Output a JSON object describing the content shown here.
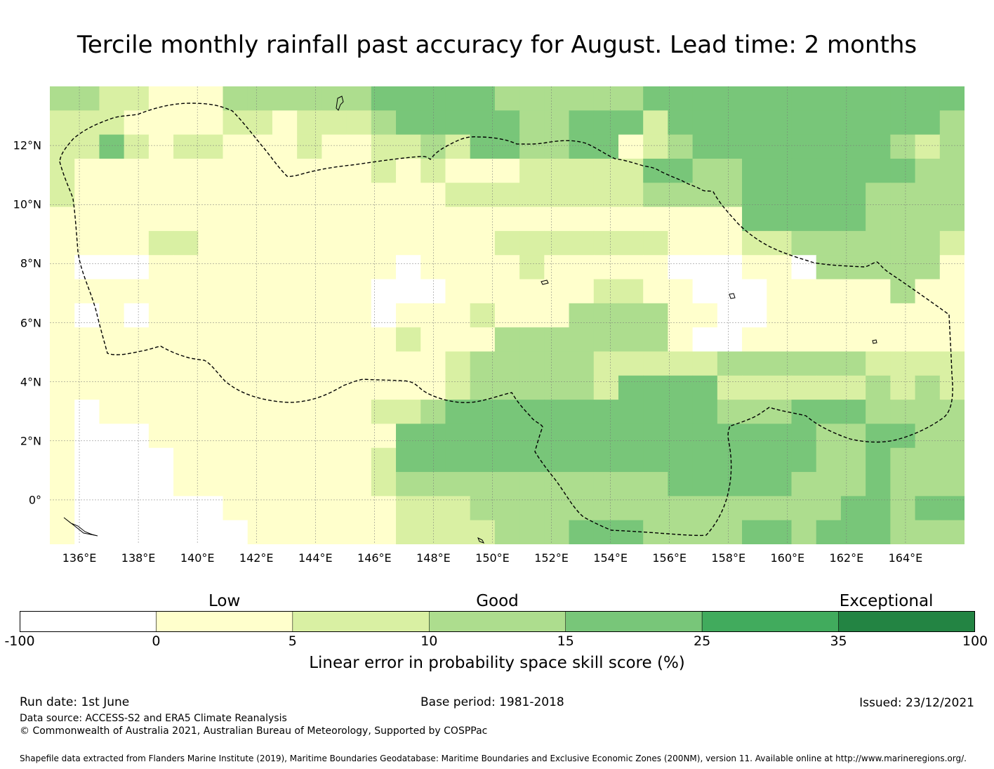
{
  "title": "Tercile monthly rainfall past accuracy for August. Lead time: 2 months",
  "map": {
    "lon_labels": [
      "136°E",
      "138°E",
      "140°E",
      "142°E",
      "144°E",
      "146°E",
      "148°E",
      "150°E",
      "152°E",
      "154°E",
      "156°E",
      "158°E",
      "160°E",
      "162°E",
      "164°E"
    ],
    "lat_labels": [
      "12°N",
      "10°N",
      "8°N",
      "6°N",
      "4°N",
      "2°N",
      "0°"
    ],
    "lon_range": [
      135.0,
      166.0
    ],
    "lat_range": [
      -1.5,
      14.0
    ],
    "grid_cell_degrees": 0.83,
    "grid_columns": 37,
    "grid_rows": 19,
    "boundary_style": "dashed",
    "skill_class_grid": [
      "3322111333333444443333334444444444444",
      "2221111221222344444334442444444444443",
      "2242122111211223244334412344444444323",
      "2111111111111212111222224433444444433",
      "2111111111111111222222223333444443333",
      "1111111111111111111111111111444443333",
      "1111221111111111112222222111223333332",
      "1000111111111101111211111000110333331",
      "1111111111111000111111221100011111311",
      "1010111111111011121113333110011111111",
      "1111111111111121113333333100111111111",
      "1111111111111111233333222223333332222",
      "1111111111111111233333244442222223232",
      "1011111111111223444444444443334443333",
      "1000111111111144444444444444444334433",
      "1000011111111244444444444444444334333",
      "1000011111111233333333333444443334333",
      "1000000111111122233333333333333344344",
      "1000000011111122223334443333443444333"
    ]
  },
  "colorbar": {
    "categories": [
      "Low",
      "Good",
      "Exceptional"
    ],
    "boundaries": [
      "-100",
      "0",
      "5",
      "10",
      "15",
      "25",
      "35",
      "100"
    ],
    "colors": [
      "#ffffff",
      "#ffffcc",
      "#d9f0a3",
      "#addd8e",
      "#78c679",
      "#41ab5d",
      "#238443"
    ],
    "label": "Linear error in probability space skill score (%)"
  },
  "footer": {
    "run_date": "Run date: 1st June",
    "base_period": "Base period: 1981-2018",
    "issued": "Issued: 23/12/2021",
    "data_source": "Data source: ACCESS-S2 and ERA5 Climate Reanalysis",
    "copyright": "© Commonwealth of Australia 2021, Australian Bureau of Meteorology, Supported by COSPPac",
    "shapefile_note": "Shapefile data extracted from Flanders Marine Institute (2019), Maritime Boundaries Geodatabase: Maritime Boundaries and Exclusive Economic Zones (200NM), version 11. Available online at http://www.marineregions.org/."
  }
}
